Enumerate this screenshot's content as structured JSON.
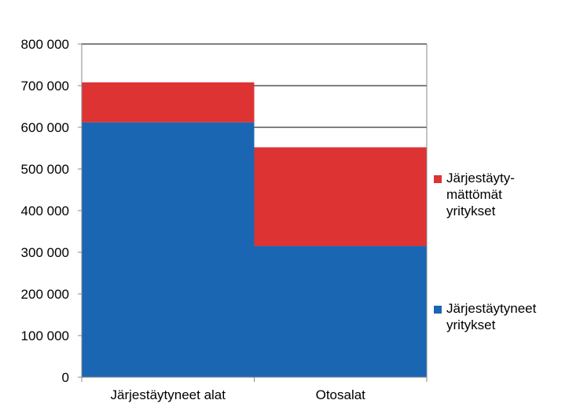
{
  "chart_data": {
    "type": "bar",
    "stacked": true,
    "categories": [
      "Järjestäytyneet alat",
      "Otosalat"
    ],
    "series": [
      {
        "name": "Järjestäytyneet\nyritykset",
        "color": "#1a66b3",
        "values": [
          612000,
          315000
        ]
      },
      {
        "name": "Järjestäyty-\nmättömät\nyritykset",
        "color": "#dd3333",
        "values": [
          96000,
          237000
        ]
      }
    ],
    "ylim": [
      0,
      800000
    ],
    "yticks": [
      "0",
      "100 000",
      "200 000",
      "300 000",
      "400 000",
      "500 000",
      "600 000",
      "700 000",
      "800 000"
    ],
    "grid": true,
    "legend": "right"
  }
}
